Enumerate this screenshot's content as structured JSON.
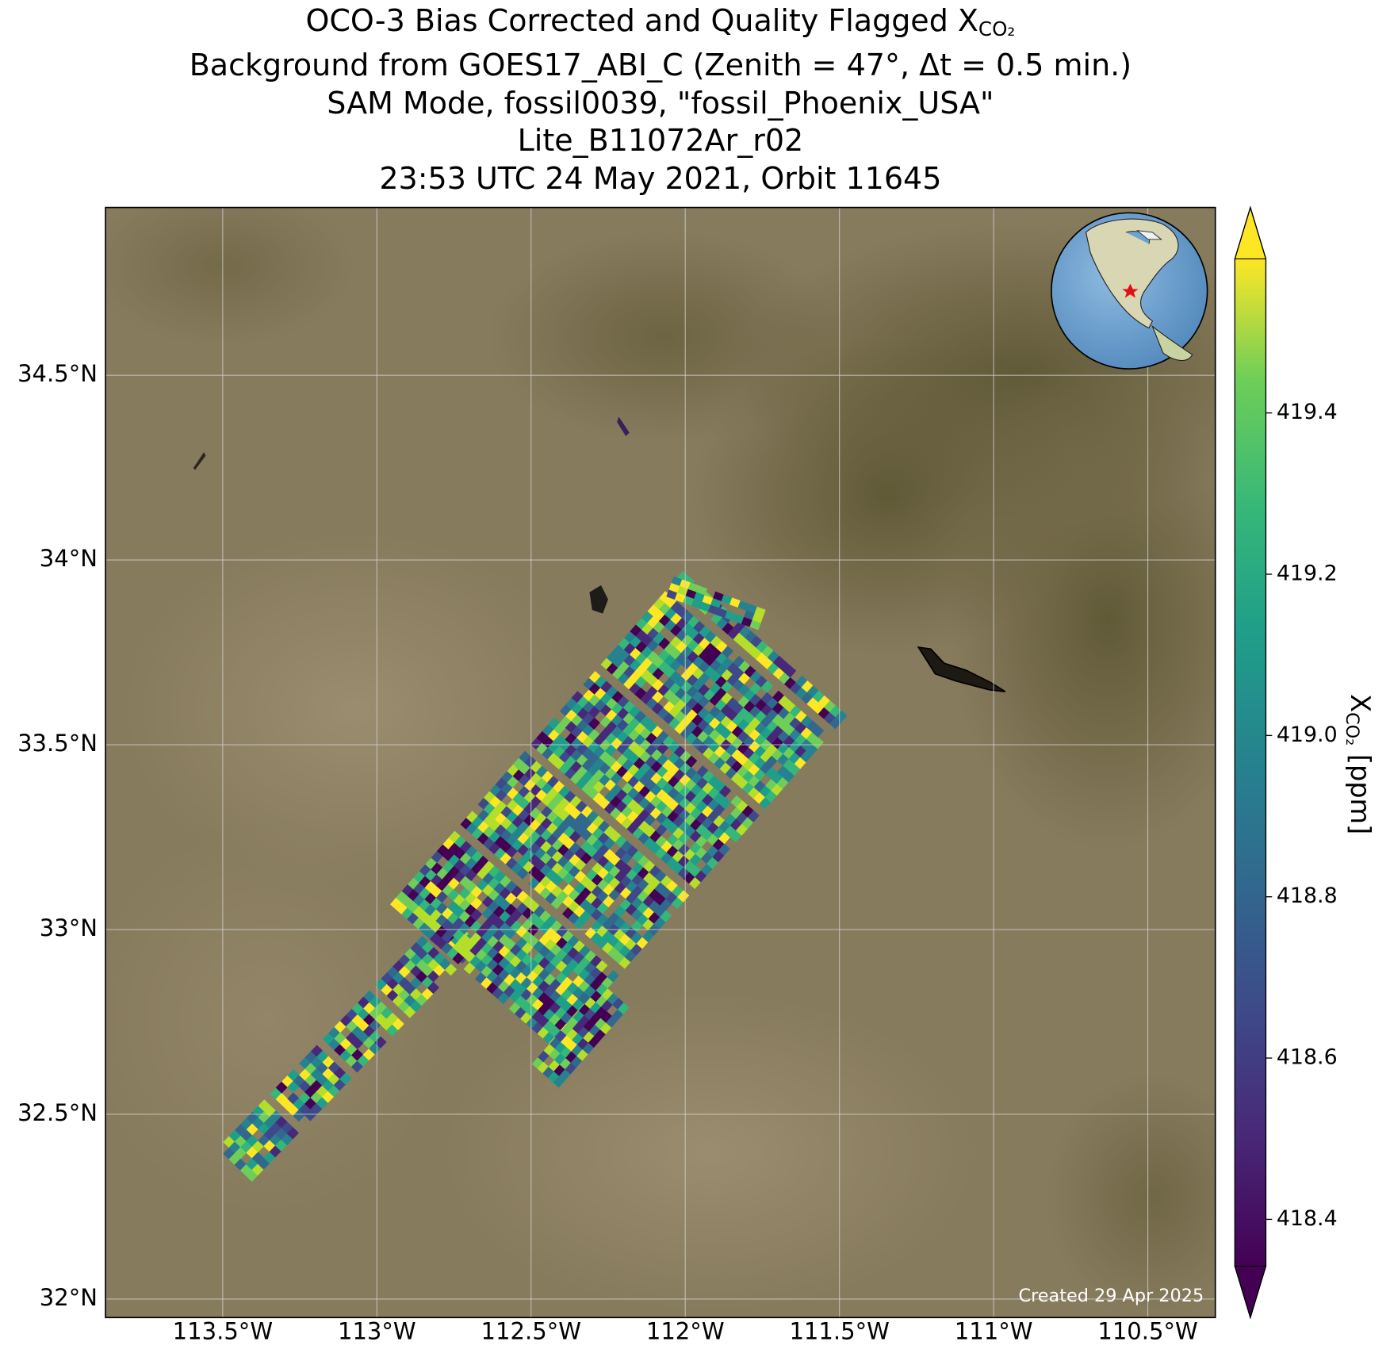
{
  "chart_data": {
    "type": "map",
    "title": [
      "OCO-3 Bias Corrected and Quality Flagged X",
      "Background from GOES17_ABI_C (Zenith = 47°, Δt =  0.5 min.)",
      "SAM Mode, fossil0039, \"fossil_Phoenix_USA\"",
      "Lite_B11072Ar_r02",
      "23:53 UTC 24 May 2021, Orbit 11645"
    ],
    "title_subscript": "CO₂",
    "xlim": [
      -113.88,
      -110.281
    ],
    "ylim": [
      31.95,
      34.954
    ],
    "xticks": [
      {
        "value": -113.5,
        "label": "113.5°W"
      },
      {
        "value": -113,
        "label": "113°W"
      },
      {
        "value": -112.5,
        "label": "112.5°W"
      },
      {
        "value": -112,
        "label": "112°W"
      },
      {
        "value": -111.5,
        "label": "111.5°W"
      },
      {
        "value": -111,
        "label": "111°W"
      },
      {
        "value": -110.5,
        "label": "110.5°W"
      }
    ],
    "yticks": [
      {
        "value": 32,
        "label": "32°N"
      },
      {
        "value": 32.5,
        "label": "32.5°N"
      },
      {
        "value": 33,
        "label": "33°N"
      },
      {
        "value": 33.5,
        "label": "33.5°N"
      },
      {
        "value": 34,
        "label": "34°N"
      },
      {
        "value": 34.5,
        "label": "34.5°N"
      }
    ],
    "grid": true,
    "colorbar": {
      "label": "X",
      "label_subscript": "CO₂",
      "label_unit": "[ppm]",
      "colormap": "viridis",
      "extend": "both",
      "lim": [
        418.342,
        419.591
      ],
      "ticks": [
        418.4,
        418.6,
        418.8,
        {
          "value": 419,
          "label": "419.0"
        },
        419.2,
        419.4
      ]
    },
    "annotation": "Created 29 Apr 2025"
  }
}
